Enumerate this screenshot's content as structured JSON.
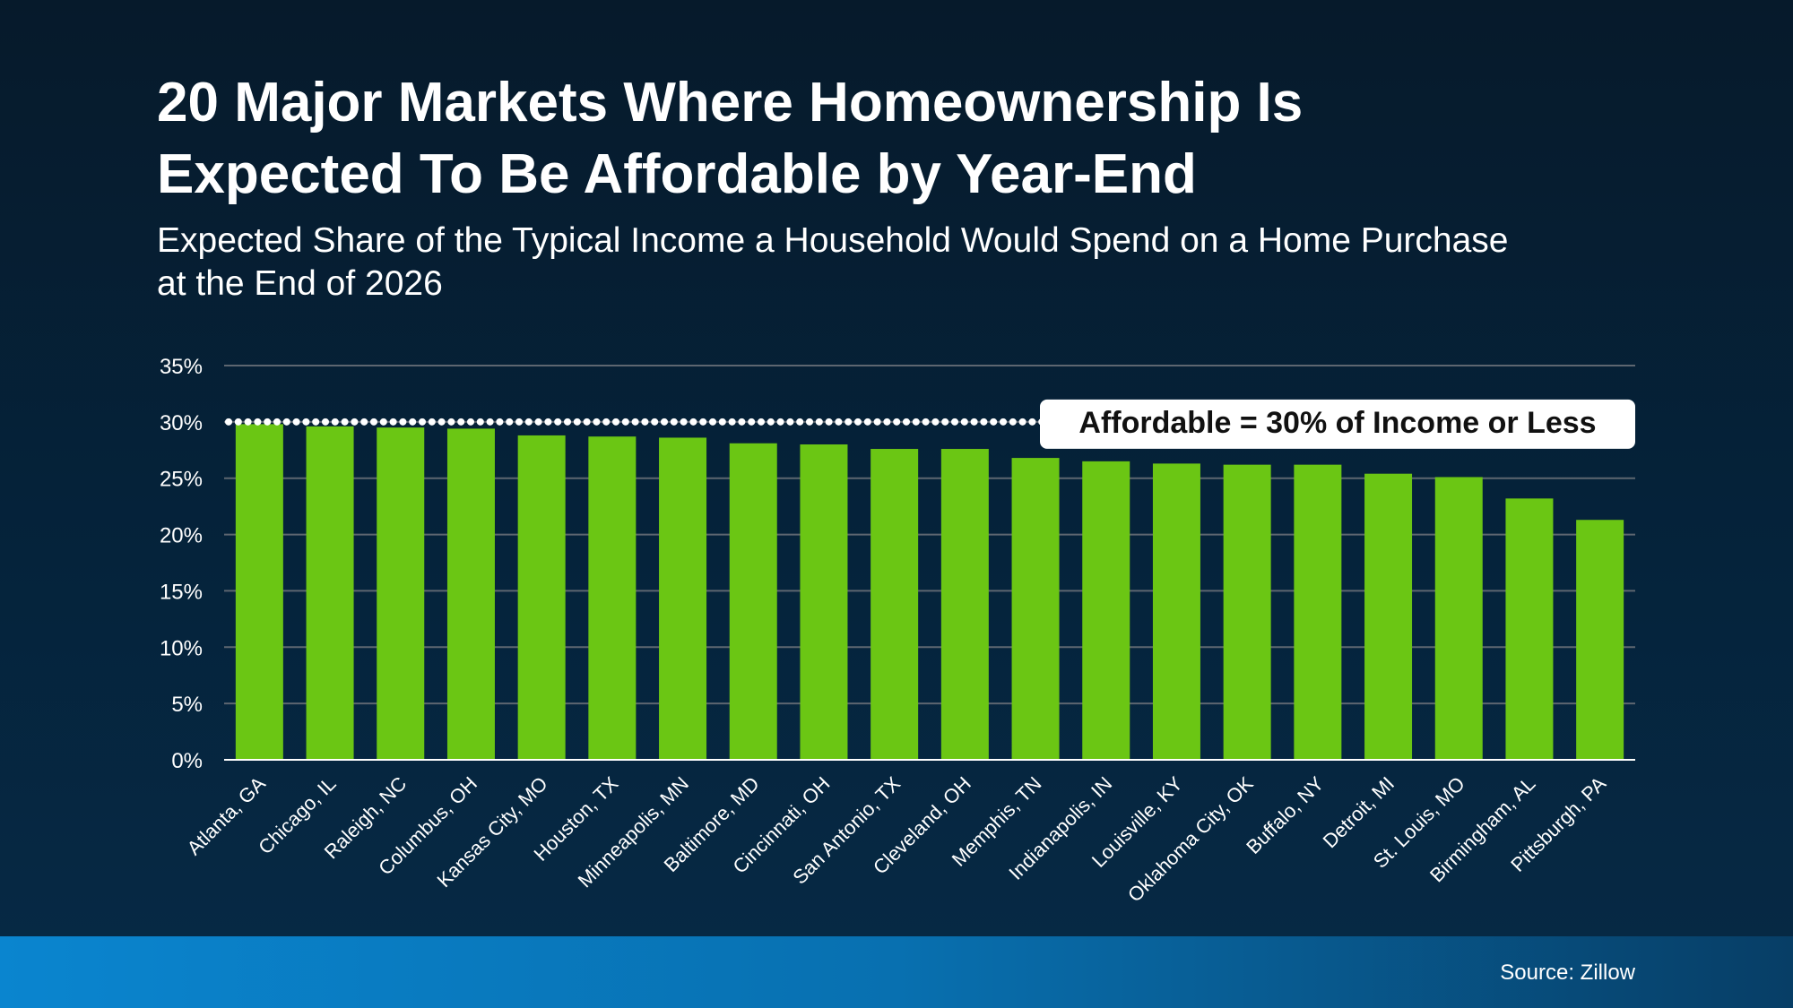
{
  "header": {
    "title_line1": "20 Major Markets Where Homeownership Is",
    "title_line2": "Expected To Be Affordable by Year-End",
    "subtitle_line1": "Expected Share of the Typical Income a Household Would Spend on a Home Purchase",
    "subtitle_line2": "at the End of 2026"
  },
  "footer": {
    "source": "Source: Zillow"
  },
  "colors": {
    "bar": "#6bc614",
    "grid": "#5d6670",
    "reference_line": "#ffffff",
    "footer": "#0a85cf"
  },
  "chart_data": {
    "type": "bar",
    "categories": [
      "Atlanta, GA",
      "Chicago, IL",
      "Raleigh, NC",
      "Columbus, OH",
      "Kansas City, MO",
      "Houston, TX",
      "Minneapolis, MN",
      "Baltimore, MD",
      "Cincinnati, OH",
      "San Antonio, TX",
      "Cleveland, OH",
      "Memphis, TN",
      "Indianapolis, IN",
      "Louisville, KY",
      "Oklahoma City, OK",
      "Buffalo, NY",
      "Detroit, MI",
      "St. Louis, MO",
      "Birmingham, AL",
      "Pittsburgh, PA"
    ],
    "values": [
      29.8,
      29.6,
      29.5,
      29.4,
      28.8,
      28.7,
      28.6,
      28.1,
      28.0,
      27.6,
      27.6,
      26.8,
      26.5,
      26.3,
      26.2,
      26.2,
      25.4,
      25.1,
      23.2,
      21.3
    ],
    "ylim": [
      0,
      35
    ],
    "yticks": [
      "0%",
      "5%",
      "10%",
      "15%",
      "20%",
      "25%",
      "30%",
      "35%"
    ],
    "grid": true,
    "reference_line": {
      "value": 30,
      "style": "dotted",
      "label": "Affordable = 30% of Income or Less"
    }
  }
}
